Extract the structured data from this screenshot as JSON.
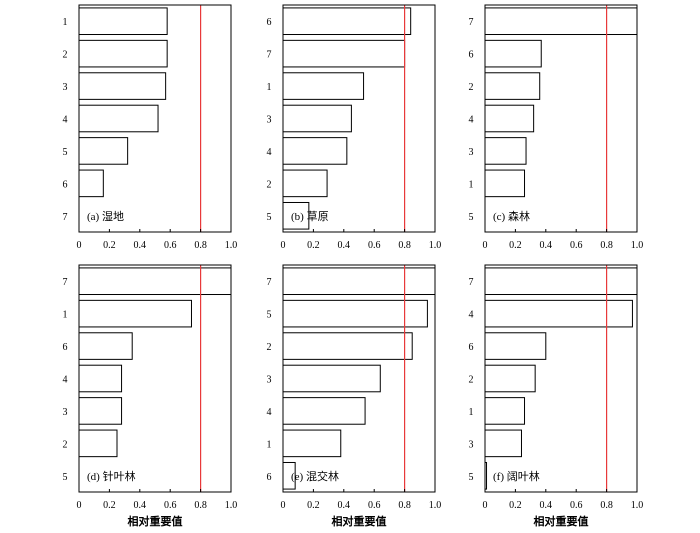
{
  "colors": {
    "reference_line": "#e8393a",
    "bar_fill": "#ffffff",
    "bar_stroke": "#000000"
  },
  "xlabel": "相对重要值",
  "chart_data": [
    {
      "type": "bar",
      "orientation": "horizontal",
      "panel_label": "(a) 湿地",
      "categories": [
        "1",
        "2",
        "3",
        "4",
        "5",
        "6",
        "7"
      ],
      "values": [
        0.58,
        0.58,
        0.57,
        0.52,
        0.32,
        0.16,
        0.0
      ],
      "xlim": [
        0,
        1.0
      ],
      "xticks": [
        "0",
        "0.2",
        "0.4",
        "0.6",
        "0.8",
        "1.0"
      ],
      "reference_line": 0.8
    },
    {
      "type": "bar",
      "orientation": "horizontal",
      "panel_label": "(b) 草原",
      "categories": [
        "6",
        "7",
        "1",
        "3",
        "4",
        "2",
        "5"
      ],
      "values": [
        0.84,
        0.8,
        0.53,
        0.45,
        0.42,
        0.29,
        0.17
      ],
      "xlim": [
        0,
        1.0
      ],
      "xticks": [
        "0",
        "0.2",
        "0.4",
        "0.6",
        "0.8",
        "1.0"
      ],
      "reference_line": 0.8
    },
    {
      "type": "bar",
      "orientation": "horizontal",
      "panel_label": "(c) 森林",
      "categories": [
        "7",
        "6",
        "2",
        "4",
        "3",
        "1",
        "5"
      ],
      "values": [
        1.0,
        0.37,
        0.36,
        0.32,
        0.27,
        0.26,
        0.0
      ],
      "xlim": [
        0,
        1.0
      ],
      "xticks": [
        "0",
        "0.2",
        "0.4",
        "0.6",
        "0.8",
        "1.0"
      ],
      "reference_line": 0.8
    },
    {
      "type": "bar",
      "orientation": "horizontal",
      "panel_label": "(d) 针叶林",
      "categories": [
        "7",
        "1",
        "6",
        "4",
        "3",
        "2",
        "5"
      ],
      "values": [
        1.0,
        0.74,
        0.35,
        0.28,
        0.28,
        0.25,
        0.0
      ],
      "xlim": [
        0,
        1.0
      ],
      "xticks": [
        "0",
        "0.2",
        "0.4",
        "0.6",
        "0.8",
        "1.0"
      ],
      "reference_line": 0.8
    },
    {
      "type": "bar",
      "orientation": "horizontal",
      "panel_label": "(e) 混交林",
      "categories": [
        "7",
        "5",
        "2",
        "3",
        "4",
        "1",
        "6"
      ],
      "values": [
        1.0,
        0.95,
        0.85,
        0.64,
        0.54,
        0.38,
        0.08
      ],
      "xlim": [
        0,
        1.0
      ],
      "xticks": [
        "0",
        "0.2",
        "0.4",
        "0.6",
        "0.8",
        "1.0"
      ],
      "reference_line": 0.8
    },
    {
      "type": "bar",
      "orientation": "horizontal",
      "panel_label": "(f) 阔叶林",
      "categories": [
        "7",
        "4",
        "6",
        "2",
        "1",
        "3",
        "5"
      ],
      "values": [
        1.0,
        0.97,
        0.4,
        0.33,
        0.26,
        0.24,
        0.01
      ],
      "xlim": [
        0,
        1.0
      ],
      "xticks": [
        "0",
        "0.2",
        "0.4",
        "0.6",
        "0.8",
        "1.0"
      ],
      "reference_line": 0.8
    }
  ]
}
